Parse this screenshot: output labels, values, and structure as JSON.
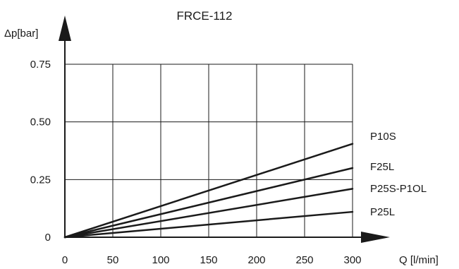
{
  "chart_data": {
    "type": "line",
    "title": "FRCE-112",
    "xlabel": "Q [l/min]",
    "ylabel": "Δp[bar]",
    "xlim": [
      0,
      300
    ],
    "ylim": [
      0,
      0.75
    ],
    "x_ticks": [
      0,
      50,
      100,
      150,
      200,
      250,
      300
    ],
    "x_tick_labels": [
      "0",
      "50",
      "100",
      "150",
      "200",
      "250",
      "300"
    ],
    "y_ticks": [
      0,
      0.25,
      0.5,
      0.75
    ],
    "y_tick_labels": [
      "0",
      "0.25",
      "0.50",
      "0.75"
    ],
    "grid": true,
    "series": [
      {
        "name": "P10S",
        "x": [
          0,
          300
        ],
        "y": [
          0,
          0.405
        ]
      },
      {
        "name": "F25L",
        "x": [
          0,
          300
        ],
        "y": [
          0,
          0.3
        ]
      },
      {
        "name": "P25S-P1OL",
        "x": [
          0,
          300
        ],
        "y": [
          0,
          0.21
        ]
      },
      {
        "name": "P25L",
        "x": [
          0,
          300
        ],
        "y": [
          0,
          0.11
        ]
      }
    ]
  }
}
